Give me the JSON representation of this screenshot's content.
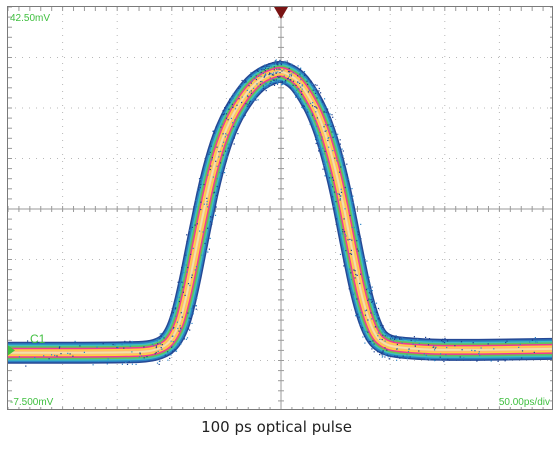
{
  "chart_data": {
    "type": "line",
    "title": "",
    "caption": "100 ps optical pulse",
    "y_top_label": "42.50mV",
    "y_bottom_label": "-7.500mV",
    "time_scale_label": "50.00ps/div",
    "channel_label": "C1",
    "ylim": [
      -7.5,
      42.5
    ],
    "y_per_div": 6.25,
    "x_divisions": 10,
    "y_divisions": 8,
    "xlim_ps": [
      -250,
      250
    ],
    "trace": {
      "x_ps": [
        -250,
        -150,
        -110,
        -95,
        -85,
        -75,
        -65,
        -55,
        -45,
        -35,
        -25,
        -15,
        -5,
        0,
        5,
        15,
        25,
        35,
        45,
        55,
        65,
        75,
        85,
        95,
        110,
        150,
        250
      ],
      "y_mV": [
        -0.3,
        -0.3,
        -0.1,
        2.2,
        7.5,
        14.5,
        21.0,
        25.8,
        29.0,
        31.2,
        32.9,
        33.9,
        34.4,
        34.5,
        34.3,
        33.5,
        31.6,
        29.0,
        25.0,
        19.5,
        12.5,
        6.0,
        2.0,
        0.7,
        0.3,
        0.0,
        0.2
      ]
    },
    "trace_colors": [
      "#1a3f8f",
      "#2e86c7",
      "#3fc7c0",
      "#6cc24a",
      "#ff2a9c",
      "#ffe23a",
      "#ffb37a",
      "#efe6b0"
    ],
    "grid": true,
    "label_color": "#3fbf3f",
    "trigger_marker_color": "#7a1414"
  }
}
